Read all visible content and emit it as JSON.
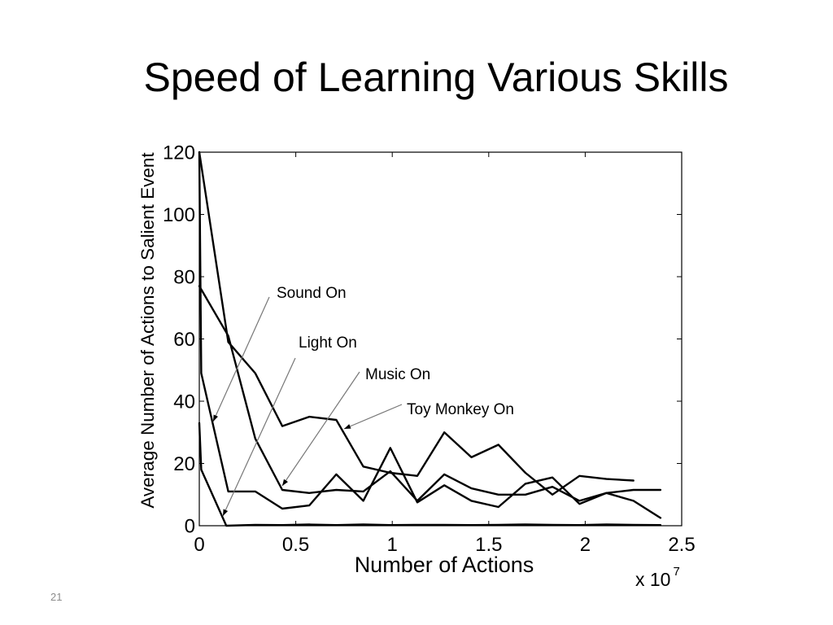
{
  "slide": {
    "title": "Speed of Learning Various Skills",
    "page_number": "21"
  },
  "colors": {
    "background": "#ffffff",
    "text": "#000000",
    "axis": "#000000",
    "series_line": "#000000",
    "annotation_arrow": "#777777",
    "annotation_arrowhead": "#000000",
    "page_number": "#8c8c8c"
  },
  "chart_data": {
    "type": "line",
    "xlabel": "Number of Actions",
    "ylabel": "Average Number of Actions to Salient Event",
    "x_multiplier": {
      "base": "x 10",
      "exponent": "7"
    },
    "xlim": [
      0,
      2.5
    ],
    "ylim": [
      0,
      120
    ],
    "xticks": [
      0,
      0.5,
      1,
      1.5,
      2,
      2.5
    ],
    "yticks": [
      0,
      20,
      40,
      60,
      80,
      100,
      120
    ],
    "grid": false,
    "legend": "none",
    "frame": "box",
    "series": [
      {
        "name": "Sound On",
        "x": [
          0,
          0.01,
          0.15,
          0.29,
          0.43,
          0.57,
          0.71,
          0.85,
          0.99,
          1.13,
          1.27,
          1.41,
          1.55,
          1.69,
          1.83,
          1.97,
          2.11,
          2.25,
          2.39
        ],
        "y": [
          120,
          49,
          11,
          11,
          5.5,
          6.5,
          16.5,
          8,
          25,
          7.5,
          13,
          8,
          6,
          13.5,
          15.5,
          7,
          10.5,
          11.5,
          11.5
        ]
      },
      {
        "name": "Light On",
        "x": [
          0,
          0.01,
          0.14,
          0.29,
          0.43,
          0.57,
          0.71,
          0.85,
          0.99,
          1.13,
          1.27,
          1.41,
          1.55,
          1.69,
          1.83,
          1.97,
          2.11,
          2.25,
          2.39
        ],
        "y": [
          33,
          18,
          0,
          0.3,
          0.2,
          0.4,
          0.2,
          0.4,
          0.2,
          0.3,
          0.3,
          0.2,
          0.3,
          0.4,
          0.3,
          0.2,
          0.4,
          0.3,
          0.2
        ]
      },
      {
        "name": "Music On",
        "x": [
          0,
          0.15,
          0.29,
          0.43,
          0.57,
          0.71,
          0.85,
          0.99,
          1.13,
          1.27,
          1.41,
          1.55,
          1.69,
          1.83,
          1.97,
          2.11,
          2.25,
          2.39
        ],
        "y": [
          77,
          61,
          28,
          11.5,
          10.5,
          11.5,
          11,
          17.5,
          8,
          16.5,
          12,
          10,
          10,
          12.5,
          8,
          10.5,
          8,
          2.5
        ]
      },
      {
        "name": "Toy Monkey On",
        "x": [
          0,
          0.15,
          0.29,
          0.43,
          0.57,
          0.71,
          0.85,
          0.99,
          1.13,
          1.27,
          1.41,
          1.55,
          1.69,
          1.83,
          1.97,
          2.11,
          2.25
        ],
        "y": [
          120,
          59,
          49,
          32,
          35,
          34,
          19,
          17,
          16,
          30,
          22,
          26,
          17,
          10,
          16,
          15,
          14.5
        ]
      }
    ]
  }
}
